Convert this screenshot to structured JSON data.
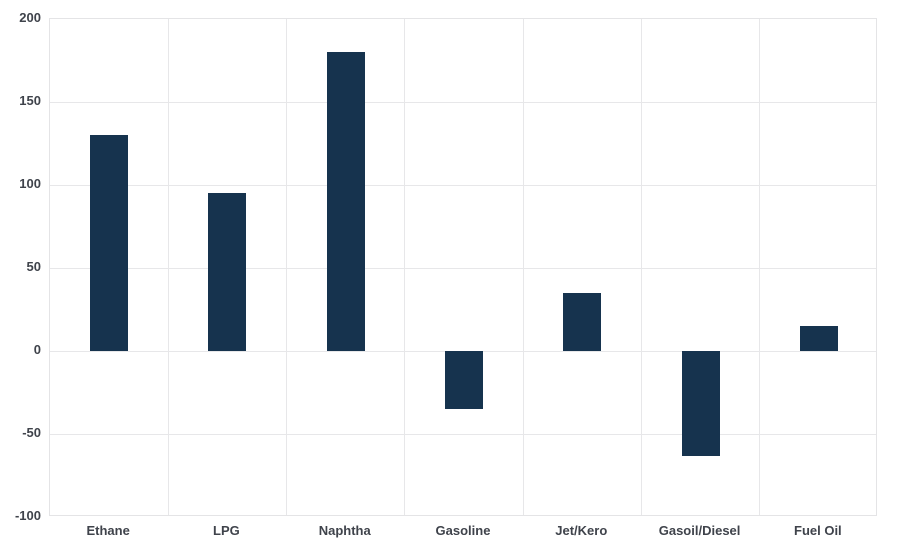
{
  "chart_data": {
    "type": "bar",
    "title": "",
    "xlabel": "",
    "ylabel": "",
    "categories": [
      "Ethane",
      "LPG",
      "Naphtha",
      "Gasoline",
      "Jet/Kero",
      "Gasoil/Diesel",
      "Fuel Oil"
    ],
    "values": [
      130,
      95,
      180,
      -35,
      35,
      -63,
      15
    ],
    "ylim": [
      -100,
      200
    ],
    "yticks": [
      200,
      150,
      100,
      50,
      0,
      -50,
      -100
    ],
    "grid": true,
    "legend_position": "none",
    "colors": {
      "bar": "#16334e",
      "grid": "#e7e7e9",
      "plot_border": "#e4e4e6",
      "tick_label": "#3f434b",
      "background": "#ffffff"
    }
  }
}
